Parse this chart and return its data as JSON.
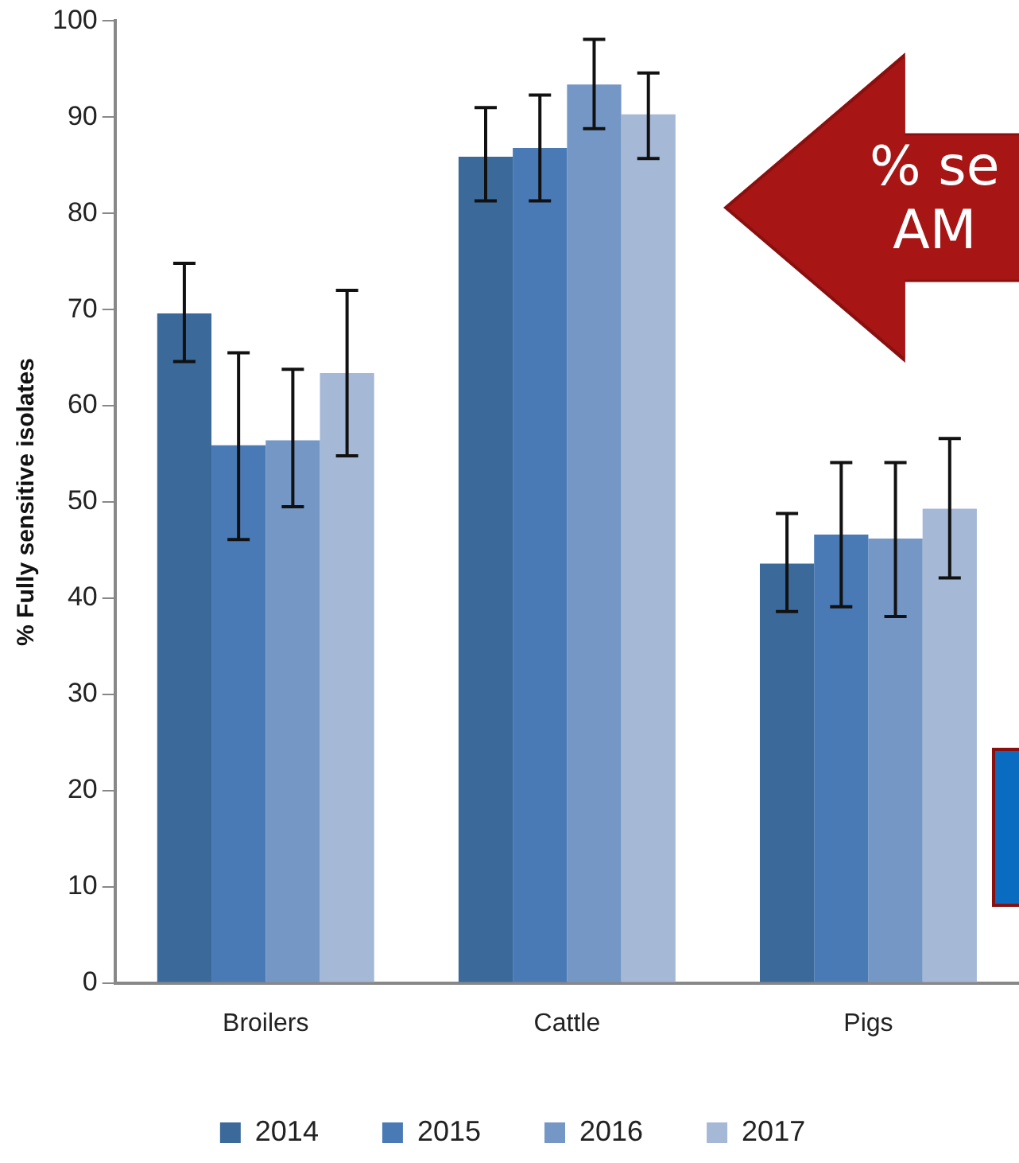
{
  "chart_data": {
    "type": "bar",
    "ylabel": "% Fully sensitive isolates",
    "categories": [
      "Broilers",
      "Cattle",
      "Pigs"
    ],
    "ylim": [
      0,
      100
    ],
    "yticks": [
      0,
      10,
      20,
      30,
      40,
      50,
      60,
      70,
      80,
      90,
      100
    ],
    "grid": false,
    "legend": "bottom",
    "series": [
      {
        "name": "2014",
        "color": "#3b6a9a",
        "values": [
          69.6,
          85.9,
          43.6
        ],
        "errors": [
          [
            64.6,
            74.8
          ],
          [
            81.3,
            91.0
          ],
          [
            38.6,
            48.8
          ]
        ]
      },
      {
        "name": "2015",
        "color": "#4a7ab5",
        "values": [
          55.9,
          86.8,
          46.6
        ],
        "errors": [
          [
            46.1,
            65.5
          ],
          [
            81.3,
            92.3
          ],
          [
            39.1,
            54.1
          ]
        ]
      },
      {
        "name": "2016",
        "color": "#7597c5",
        "values": [
          56.4,
          93.4,
          46.2
        ],
        "errors": [
          [
            49.5,
            63.8
          ],
          [
            88.8,
            98.1
          ],
          [
            38.1,
            54.1
          ]
        ]
      },
      {
        "name": "2017",
        "color": "#a5b8d6",
        "values": [
          63.4,
          90.3,
          49.3
        ],
        "errors": [
          [
            54.8,
            72.0
          ],
          [
            85.7,
            94.6
          ],
          [
            42.1,
            56.6
          ]
        ]
      }
    ],
    "annotations": [
      "% se",
      "AM"
    ]
  }
}
